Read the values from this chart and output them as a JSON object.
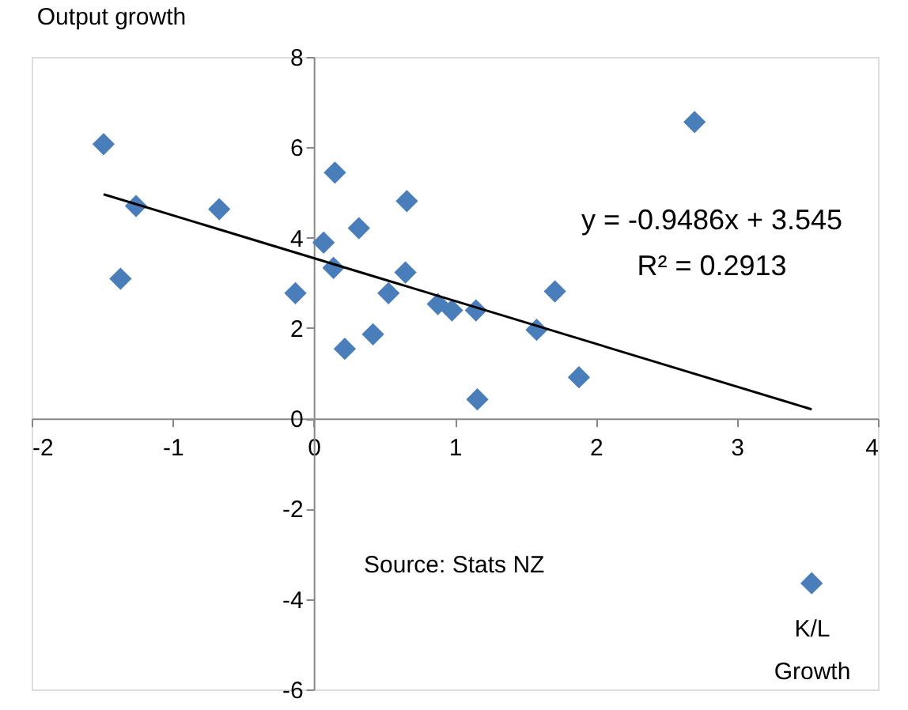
{
  "chart_data": {
    "type": "scatter",
    "xlabel": "K/L Growth",
    "ylabel": "Output growth",
    "xlim": [
      -2,
      4
    ],
    "xticks": [
      -2,
      -1,
      0,
      1,
      2,
      3,
      4
    ],
    "ylim": [
      -6,
      8
    ],
    "yticks": [
      -6,
      -4,
      -2,
      0,
      2,
      4,
      6,
      8
    ],
    "grid": false,
    "series": [
      {
        "marker": "diamond",
        "color": "#4a7ebb",
        "x": [
          -1.49,
          -1.26,
          -1.37,
          -0.67,
          -0.13,
          0.07,
          0.15,
          0.14,
          0.22,
          0.32,
          0.42,
          0.53,
          0.66,
          0.65,
          0.88,
          0.98,
          1.15,
          1.16,
          1.58,
          1.71,
          1.88,
          2.7,
          3.53
        ],
        "values": [
          6.07,
          4.7,
          3.09,
          4.63,
          2.77,
          3.89,
          5.44,
          3.33,
          1.54,
          4.21,
          1.86,
          2.77,
          4.81,
          3.23,
          2.53,
          2.39,
          2.39,
          0.42,
          1.96,
          2.81,
          0.91,
          6.56,
          -3.65
        ]
      },
      {
        "type": "line",
        "color": "#000000",
        "x": [
          -1.49,
          3.53
        ],
        "values": [
          4.96,
          0.2
        ]
      }
    ],
    "annotations": [
      "y = -0.9486x + 3.545",
      "R² = 0.2913",
      "Source: Stats NZ"
    ]
  }
}
